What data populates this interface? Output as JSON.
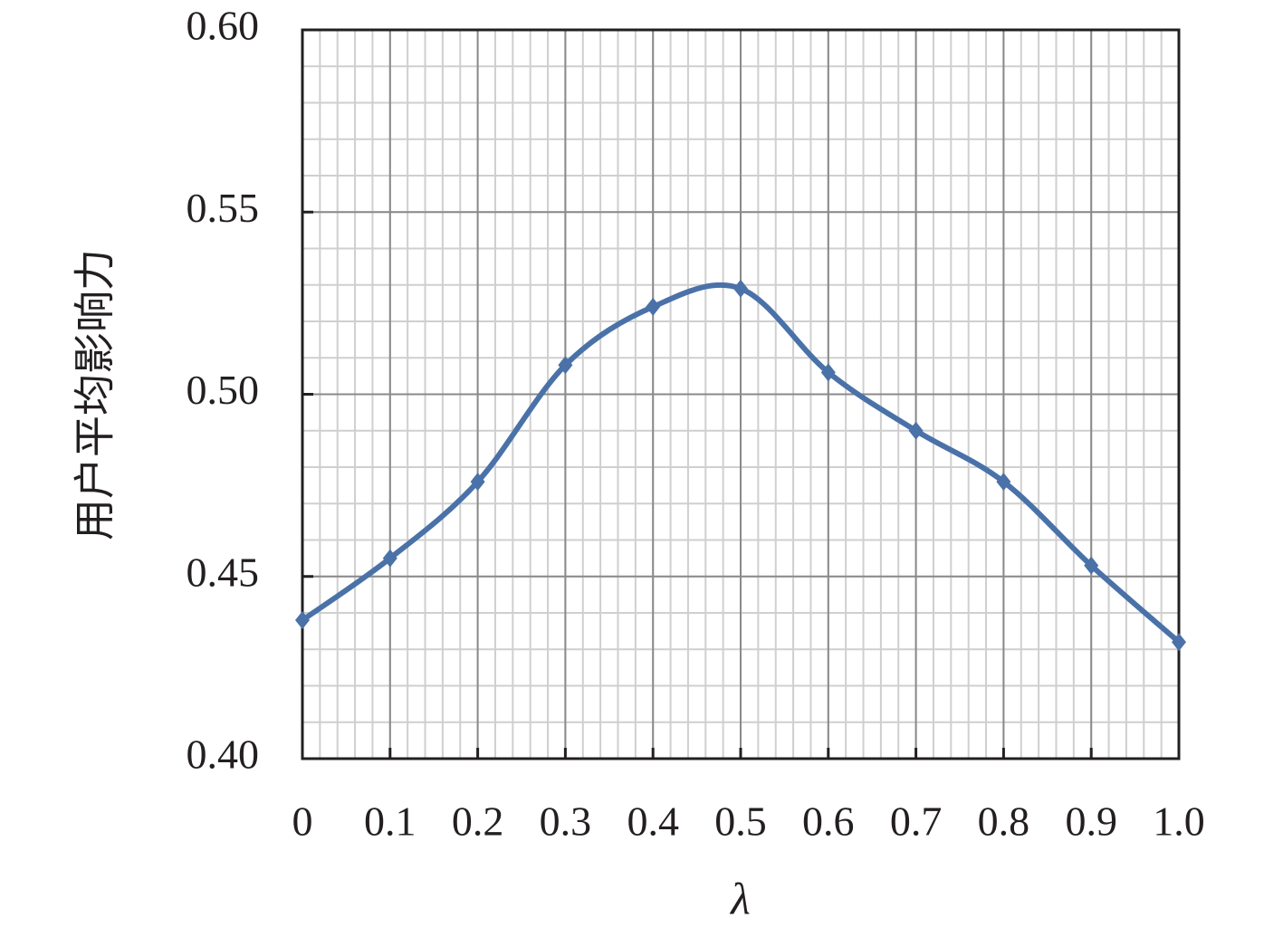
{
  "chart_data": {
    "type": "line",
    "x_label": "λ",
    "y_label": "用户平均影响力",
    "x": [
      0,
      0.1,
      0.2,
      0.3,
      0.4,
      0.5,
      0.6,
      0.7,
      0.8,
      0.9,
      1
    ],
    "series": [
      {
        "color": "#4a72a8",
        "values": [
          0.438,
          0.455,
          0.476,
          0.508,
          0.524,
          0.529,
          0.506,
          0.49,
          0.476,
          0.453,
          0.432
        ]
      }
    ],
    "xlim": [
      0,
      1
    ],
    "xticks": [
      0,
      0.1,
      0.2,
      0.3,
      0.4,
      0.5,
      0.6,
      0.7,
      0.8,
      0.9,
      {
        "value": 1,
        "label": "1.0"
      }
    ],
    "ylim": [
      0.4,
      0.6
    ],
    "yticks": [
      {
        "value": 0.4,
        "label": "0.40"
      },
      0.45,
      {
        "value": 0.5,
        "label": "0.50"
      },
      0.55,
      {
        "value": 0.6,
        "label": "0.60"
      }
    ],
    "grid": true
  }
}
